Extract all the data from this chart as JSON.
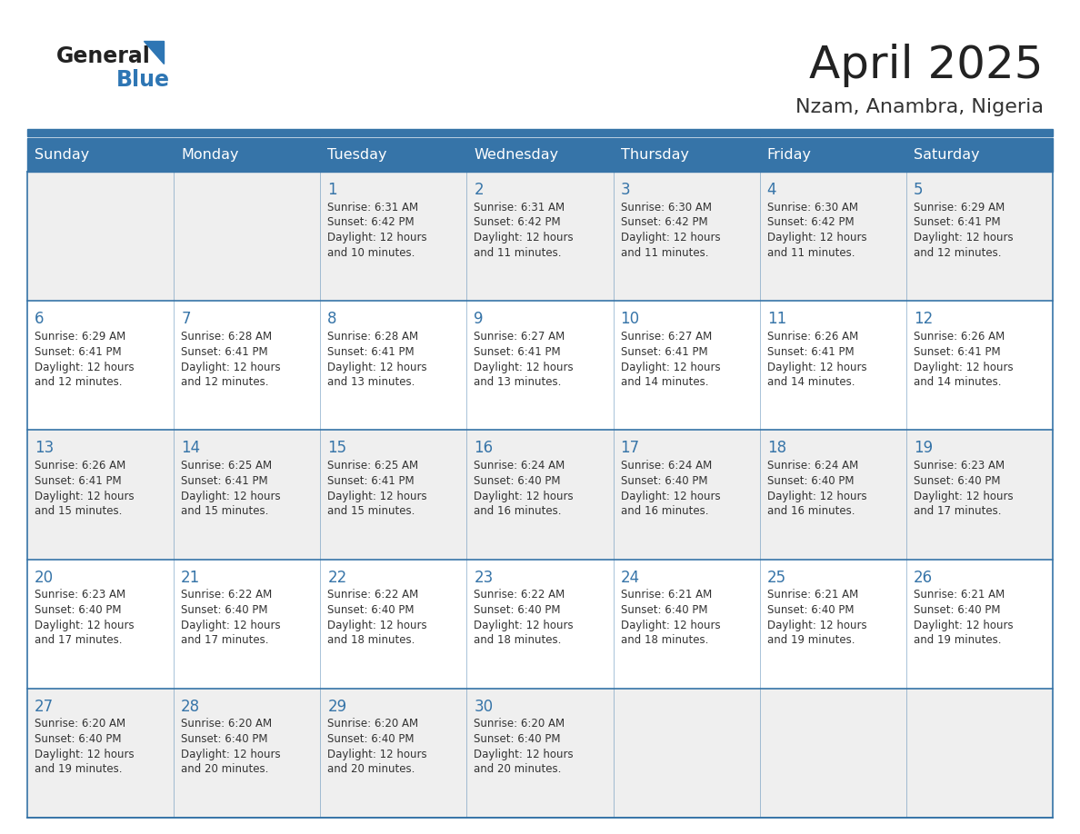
{
  "title": "April 2025",
  "subtitle": "Nzam, Anambra, Nigeria",
  "days_of_week": [
    "Sunday",
    "Monday",
    "Tuesday",
    "Wednesday",
    "Thursday",
    "Friday",
    "Saturday"
  ],
  "header_bg": "#3674a8",
  "header_text_color": "#FFFFFF",
  "row_bg_odd": "#efefef",
  "row_bg_even": "#ffffff",
  "cell_border_color": "#3674a8",
  "title_color": "#222222",
  "subtitle_color": "#333333",
  "day_number_color": "#3674a8",
  "cell_text_color": "#333333",
  "logo_general_color": "#222222",
  "logo_blue_color": "#2e76b4",
  "calendar": [
    [
      {
        "day": null,
        "sunrise": null,
        "sunset": null,
        "daylight": null
      },
      {
        "day": null,
        "sunrise": null,
        "sunset": null,
        "daylight": null
      },
      {
        "day": 1,
        "sunrise": "6:31 AM",
        "sunset": "6:42 PM",
        "daylight": "12 hours and 10 minutes."
      },
      {
        "day": 2,
        "sunrise": "6:31 AM",
        "sunset": "6:42 PM",
        "daylight": "12 hours and 11 minutes."
      },
      {
        "day": 3,
        "sunrise": "6:30 AM",
        "sunset": "6:42 PM",
        "daylight": "12 hours and 11 minutes."
      },
      {
        "day": 4,
        "sunrise": "6:30 AM",
        "sunset": "6:42 PM",
        "daylight": "12 hours and 11 minutes."
      },
      {
        "day": 5,
        "sunrise": "6:29 AM",
        "sunset": "6:41 PM",
        "daylight": "12 hours and 12 minutes."
      }
    ],
    [
      {
        "day": 6,
        "sunrise": "6:29 AM",
        "sunset": "6:41 PM",
        "daylight": "12 hours and 12 minutes."
      },
      {
        "day": 7,
        "sunrise": "6:28 AM",
        "sunset": "6:41 PM",
        "daylight": "12 hours and 12 minutes."
      },
      {
        "day": 8,
        "sunrise": "6:28 AM",
        "sunset": "6:41 PM",
        "daylight": "12 hours and 13 minutes."
      },
      {
        "day": 9,
        "sunrise": "6:27 AM",
        "sunset": "6:41 PM",
        "daylight": "12 hours and 13 minutes."
      },
      {
        "day": 10,
        "sunrise": "6:27 AM",
        "sunset": "6:41 PM",
        "daylight": "12 hours and 14 minutes."
      },
      {
        "day": 11,
        "sunrise": "6:26 AM",
        "sunset": "6:41 PM",
        "daylight": "12 hours and 14 minutes."
      },
      {
        "day": 12,
        "sunrise": "6:26 AM",
        "sunset": "6:41 PM",
        "daylight": "12 hours and 14 minutes."
      }
    ],
    [
      {
        "day": 13,
        "sunrise": "6:26 AM",
        "sunset": "6:41 PM",
        "daylight": "12 hours and 15 minutes."
      },
      {
        "day": 14,
        "sunrise": "6:25 AM",
        "sunset": "6:41 PM",
        "daylight": "12 hours and 15 minutes."
      },
      {
        "day": 15,
        "sunrise": "6:25 AM",
        "sunset": "6:41 PM",
        "daylight": "12 hours and 15 minutes."
      },
      {
        "day": 16,
        "sunrise": "6:24 AM",
        "sunset": "6:40 PM",
        "daylight": "12 hours and 16 minutes."
      },
      {
        "day": 17,
        "sunrise": "6:24 AM",
        "sunset": "6:40 PM",
        "daylight": "12 hours and 16 minutes."
      },
      {
        "day": 18,
        "sunrise": "6:24 AM",
        "sunset": "6:40 PM",
        "daylight": "12 hours and 16 minutes."
      },
      {
        "day": 19,
        "sunrise": "6:23 AM",
        "sunset": "6:40 PM",
        "daylight": "12 hours and 17 minutes."
      }
    ],
    [
      {
        "day": 20,
        "sunrise": "6:23 AM",
        "sunset": "6:40 PM",
        "daylight": "12 hours and 17 minutes."
      },
      {
        "day": 21,
        "sunrise": "6:22 AM",
        "sunset": "6:40 PM",
        "daylight": "12 hours and 17 minutes."
      },
      {
        "day": 22,
        "sunrise": "6:22 AM",
        "sunset": "6:40 PM",
        "daylight": "12 hours and 18 minutes."
      },
      {
        "day": 23,
        "sunrise": "6:22 AM",
        "sunset": "6:40 PM",
        "daylight": "12 hours and 18 minutes."
      },
      {
        "day": 24,
        "sunrise": "6:21 AM",
        "sunset": "6:40 PM",
        "daylight": "12 hours and 18 minutes."
      },
      {
        "day": 25,
        "sunrise": "6:21 AM",
        "sunset": "6:40 PM",
        "daylight": "12 hours and 19 minutes."
      },
      {
        "day": 26,
        "sunrise": "6:21 AM",
        "sunset": "6:40 PM",
        "daylight": "12 hours and 19 minutes."
      }
    ],
    [
      {
        "day": 27,
        "sunrise": "6:20 AM",
        "sunset": "6:40 PM",
        "daylight": "12 hours and 19 minutes."
      },
      {
        "day": 28,
        "sunrise": "6:20 AM",
        "sunset": "6:40 PM",
        "daylight": "12 hours and 20 minutes."
      },
      {
        "day": 29,
        "sunrise": "6:20 AM",
        "sunset": "6:40 PM",
        "daylight": "12 hours and 20 minutes."
      },
      {
        "day": 30,
        "sunrise": "6:20 AM",
        "sunset": "6:40 PM",
        "daylight": "12 hours and 20 minutes."
      },
      {
        "day": null,
        "sunrise": null,
        "sunset": null,
        "daylight": null
      },
      {
        "day": null,
        "sunrise": null,
        "sunset": null,
        "daylight": null
      },
      {
        "day": null,
        "sunrise": null,
        "sunset": null,
        "daylight": null
      }
    ]
  ]
}
